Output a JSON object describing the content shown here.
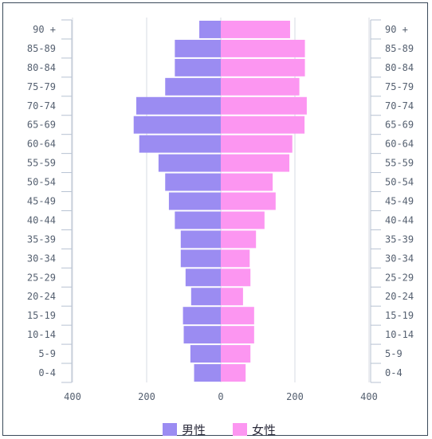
{
  "chart_data": {
    "type": "bar",
    "orientation": "horizontal",
    "subtype": "population-pyramid",
    "categories": [
      "0-4",
      "5-9",
      "10-14",
      "15-19",
      "20-24",
      "25-29",
      "30-34",
      "35-39",
      "40-44",
      "45-49",
      "50-54",
      "55-59",
      "60-64",
      "65-69",
      "70-74",
      "75-79",
      "80-84",
      "85-89",
      "90 +"
    ],
    "series": [
      {
        "name": "男性",
        "side": "left",
        "color": "#9b8cf2",
        "values": [
          72,
          82,
          100,
          102,
          80,
          95,
          108,
          108,
          124,
          140,
          150,
          168,
          220,
          235,
          228,
          150,
          124,
          124,
          58
        ]
      },
      {
        "name": "女性",
        "side": "right",
        "color": "#fc96f1",
        "values": [
          67,
          80,
          90,
          90,
          60,
          80,
          78,
          95,
          118,
          148,
          140,
          185,
          193,
          226,
          232,
          212,
          227,
          227,
          187
        ]
      }
    ],
    "x_ticks": [
      "400",
      "200",
      "0",
      "200",
      "400"
    ],
    "xlim": [
      -400,
      400
    ],
    "grid": true,
    "legend_position": "bottom-center"
  }
}
